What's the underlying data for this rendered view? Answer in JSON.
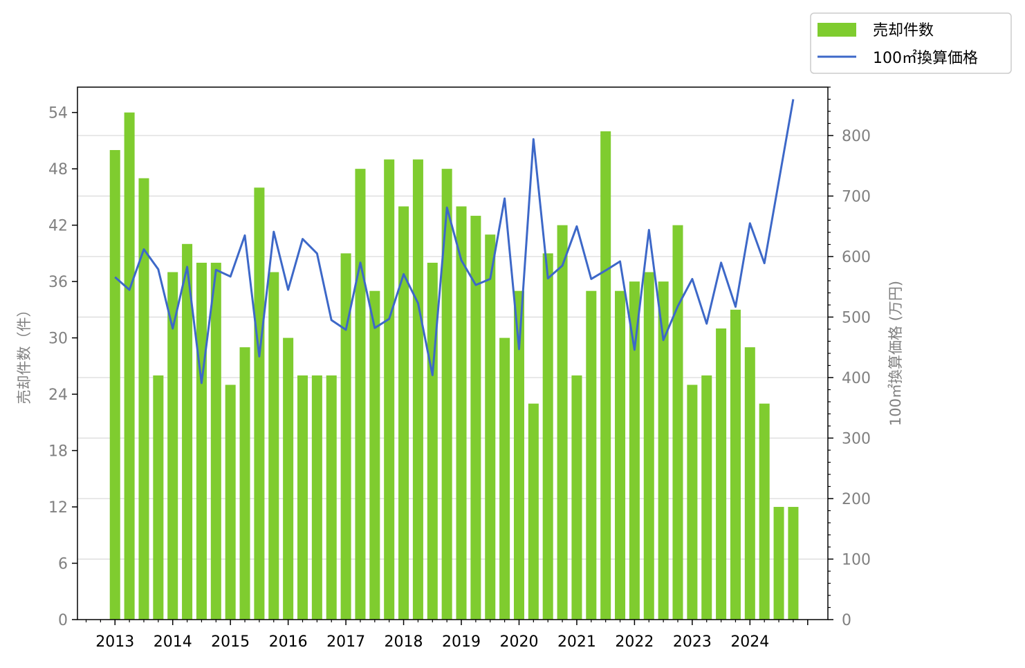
{
  "chart_data": {
    "type": "bar+line",
    "title": "",
    "xlabel": "",
    "x_tick_labels": [
      "2013",
      "2014",
      "2015",
      "2016",
      "2017",
      "2018",
      "2019",
      "2020",
      "2021",
      "2022",
      "2023",
      "2024"
    ],
    "y_left": {
      "label": "売却件数（件）",
      "ticks": [
        0,
        6,
        12,
        18,
        24,
        30,
        36,
        42,
        48,
        54
      ],
      "ylim": [
        0,
        56.7
      ]
    },
    "y_right": {
      "label": "100㎡換算価格 (万円)",
      "ticks": [
        0,
        100,
        200,
        300,
        400,
        500,
        600,
        700,
        800
      ],
      "ylim": [
        0,
        880
      ]
    },
    "x_positions": [
      2013.0,
      2013.25,
      2013.5,
      2013.75,
      2014.0,
      2014.25,
      2014.5,
      2014.75,
      2015.0,
      2015.25,
      2015.5,
      2015.75,
      2016.0,
      2016.25,
      2016.5,
      2016.75,
      2017.0,
      2017.25,
      2017.5,
      2017.75,
      2018.0,
      2018.25,
      2018.5,
      2018.75,
      2019.0,
      2019.25,
      2019.5,
      2019.75,
      2020.0,
      2020.25,
      2020.5,
      2020.75,
      2021.0,
      2021.25,
      2021.5,
      2021.75,
      2022.0,
      2022.25,
      2022.5,
      2022.75,
      2023.0,
      2023.25,
      2023.5,
      2023.75,
      2024.0,
      2024.25,
      2024.5,
      2024.75
    ],
    "series": [
      {
        "name": "売却件数",
        "type": "bar",
        "axis": "left",
        "color": "#7fcc2f",
        "values": [
          50,
          54,
          47,
          26,
          37,
          40,
          38,
          38,
          25,
          29,
          46,
          37,
          30,
          26,
          26,
          26,
          39,
          48,
          35,
          49,
          44,
          49,
          38,
          48,
          44,
          43,
          41,
          30,
          35,
          23,
          39,
          42,
          26,
          35,
          52,
          35,
          36,
          37,
          36,
          42,
          25,
          26,
          31,
          33,
          29,
          23,
          12,
          12
        ]
      },
      {
        "name": "100㎡換算価格",
        "type": "line",
        "axis": "right",
        "color": "#3d68c8",
        "values": [
          566,
          545,
          612,
          579,
          481,
          583,
          391,
          578,
          567,
          635,
          435,
          641,
          545,
          629,
          605,
          495,
          479,
          590,
          482,
          497,
          571,
          523,
          404,
          681,
          594,
          553,
          563,
          696,
          447,
          794,
          564,
          585,
          650,
          563,
          577,
          592,
          446,
          644,
          462,
          518,
          563,
          489,
          590,
          517,
          655,
          589,
          null,
          860
        ]
      }
    ],
    "grid": {
      "horizontal": true,
      "vertical": false
    },
    "legend": {
      "placement": "top-right"
    }
  }
}
